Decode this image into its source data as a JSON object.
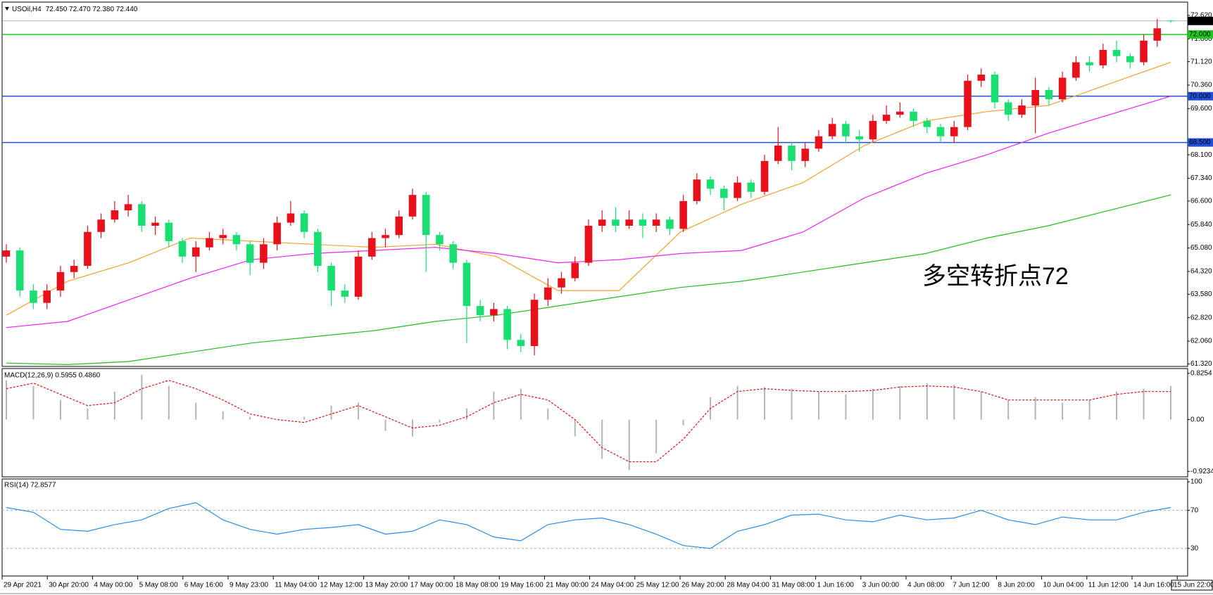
{
  "chart_data": [
    {
      "type": "candlestick",
      "title": "USOil,H4",
      "subtitle": "72.450 72.470 72.380 72.440",
      "open": [
        64.8,
        65.0,
        63.7,
        63.3,
        63.7,
        64.3,
        64.5,
        65.6,
        66.0,
        66.3,
        66.5,
        65.8,
        65.9,
        65.3,
        64.8,
        65.1,
        65.4,
        65.5,
        65.2,
        64.6,
        65.2,
        65.9,
        66.2,
        65.6,
        64.5,
        63.7,
        63.5,
        64.8,
        65.4,
        65.5,
        66.1,
        66.8,
        65.5,
        65.2,
        64.6,
        63.2,
        62.9,
        63.1,
        62.1,
        61.9,
        63.4,
        63.8,
        64.1,
        64.6,
        65.8,
        66.0,
        65.8,
        66.0,
        65.8,
        66.0,
        65.7,
        66.6,
        67.3,
        67.0,
        66.7,
        67.2,
        66.9,
        67.9,
        68.4,
        67.9,
        68.3,
        68.7,
        69.1,
        68.7,
        68.6,
        69.2,
        69.4,
        69.5,
        69.2,
        69.0,
        68.7,
        69.0,
        70.5,
        70.7,
        69.8,
        69.4,
        69.7,
        70.2,
        69.9,
        70.6,
        71.1,
        71.0,
        71.5,
        71.3,
        71.1,
        71.8,
        72.45
      ],
      "high": [
        65.2,
        65.1,
        63.9,
        63.9,
        64.5,
        64.7,
        65.8,
        66.2,
        66.6,
        66.8,
        66.6,
        66.1,
        66.0,
        65.4,
        65.3,
        65.6,
        65.7,
        65.6,
        65.3,
        65.4,
        66.1,
        66.6,
        66.3,
        65.7,
        64.6,
        63.9,
        65.0,
        65.6,
        65.7,
        66.3,
        67.0,
        66.9,
        65.6,
        65.3,
        64.7,
        63.4,
        63.3,
        63.2,
        62.3,
        63.6,
        64.1,
        64.3,
        64.8,
        66.0,
        66.3,
        66.4,
        66.3,
        66.2,
        66.2,
        66.1,
        66.8,
        67.5,
        67.4,
        67.1,
        67.4,
        67.3,
        68.1,
        69.0,
        68.5,
        68.5,
        68.9,
        69.3,
        69.2,
        68.9,
        69.4,
        69.7,
        69.8,
        69.6,
        69.3,
        69.1,
        69.2,
        70.7,
        70.9,
        70.8,
        69.9,
        69.9,
        70.6,
        70.3,
        70.8,
        71.3,
        71.3,
        71.7,
        71.8,
        71.4,
        72.0,
        72.5,
        72.47
      ],
      "low": [
        64.6,
        63.5,
        63.1,
        63.1,
        63.5,
        64.1,
        64.4,
        65.4,
        65.9,
        66.1,
        65.6,
        65.5,
        65.1,
        64.6,
        64.3,
        65.0,
        65.2,
        65.0,
        64.2,
        64.4,
        65.0,
        65.8,
        65.4,
        64.3,
        63.2,
        63.3,
        63.4,
        64.7,
        65.1,
        65.4,
        66.0,
        64.3,
        65.0,
        64.4,
        62.0,
        62.7,
        62.7,
        61.8,
        61.7,
        61.6,
        63.2,
        63.6,
        64.0,
        64.5,
        65.6,
        65.6,
        65.7,
        65.4,
        65.6,
        65.5,
        65.6,
        66.5,
        66.8,
        66.3,
        66.6,
        66.7,
        66.8,
        67.8,
        67.6,
        67.7,
        68.2,
        68.6,
        68.5,
        68.2,
        68.5,
        69.1,
        69.3,
        69.0,
        68.8,
        68.5,
        68.5,
        68.9,
        70.3,
        69.6,
        69.2,
        69.3,
        68.8,
        69.7,
        69.8,
        70.5,
        70.8,
        70.9,
        71.1,
        70.9,
        71.0,
        71.6,
        72.38
      ],
      "close": [
        65.0,
        63.7,
        63.3,
        63.7,
        64.3,
        64.5,
        65.6,
        66.0,
        66.3,
        66.5,
        65.8,
        65.9,
        65.3,
        64.8,
        65.1,
        65.4,
        65.5,
        65.2,
        64.6,
        65.2,
        65.9,
        66.2,
        65.6,
        64.5,
        63.7,
        63.5,
        64.8,
        65.4,
        65.5,
        66.1,
        66.8,
        65.5,
        65.2,
        64.6,
        63.2,
        62.9,
        63.1,
        62.1,
        61.9,
        63.4,
        63.8,
        64.1,
        64.6,
        65.8,
        66.0,
        65.8,
        66.0,
        65.8,
        66.0,
        65.7,
        66.6,
        67.3,
        67.0,
        66.7,
        67.2,
        66.9,
        67.9,
        68.4,
        67.9,
        68.3,
        68.7,
        69.1,
        68.7,
        68.6,
        69.2,
        69.4,
        69.5,
        69.2,
        69.0,
        68.7,
        69.0,
        70.5,
        70.7,
        69.8,
        69.4,
        69.7,
        70.2,
        69.9,
        70.6,
        71.1,
        71.0,
        71.5,
        71.3,
        71.1,
        71.8,
        72.2,
        72.44
      ],
      "up_color": "#e8111b",
      "down_color": "#19df72",
      "series": [
        {
          "color": "#f5a030",
          "values": [
            62.9,
            64.0,
            64.6,
            65.4,
            65.3,
            65.2,
            65.1,
            65.2,
            64.8,
            63.7,
            63.7,
            65.6,
            66.5,
            67.2,
            68.4,
            69.2,
            69.5,
            69.7,
            70.4,
            71.1
          ]
        },
        {
          "color": "#ee22ee",
          "values": [
            62.5,
            62.7,
            63.4,
            64.1,
            64.7,
            64.9,
            65.0,
            65.1,
            64.9,
            64.6,
            64.7,
            64.9,
            65.0,
            65.6,
            66.7,
            67.5,
            68.1,
            68.8,
            69.4,
            70.0
          ]
        },
        {
          "color": "#22bb22",
          "values": [
            61.35,
            61.3,
            61.4,
            61.7,
            62.0,
            62.2,
            62.4,
            62.7,
            62.9,
            63.2,
            63.5,
            63.8,
            64.0,
            64.3,
            64.6,
            64.9,
            65.4,
            65.8,
            66.3,
            66.8
          ]
        }
      ],
      "ylim": [
        61.24,
        73.05
      ],
      "yticks": [
        {
          "value": 72.62,
          "label": "72.620"
        },
        {
          "value": 71.86,
          "label": "71.860"
        },
        {
          "value": 71.12,
          "label": "71.120"
        },
        {
          "value": 70.36,
          "label": "70.360"
        },
        {
          "value": 69.6,
          "label": "69.600"
        },
        {
          "value": 68.1,
          "label": "68.100"
        },
        {
          "value": 67.34,
          "label": "67.340"
        },
        {
          "value": 66.6,
          "label": "66.600"
        },
        {
          "value": 65.84,
          "label": "65.840"
        },
        {
          "value": 65.08,
          "label": "65.080"
        },
        {
          "value": 64.32,
          "label": "64.320"
        },
        {
          "value": 63.58,
          "label": "63.580"
        },
        {
          "value": 62.82,
          "label": "62.820"
        },
        {
          "value": 62.06,
          "label": "62.060"
        },
        {
          "value": 61.32,
          "label": "61.320"
        }
      ],
      "levels": [
        {
          "value": 72,
          "label": "72.000",
          "color": "#1ec81e"
        },
        {
          "value": 70,
          "label": "70.000",
          "color": "#2050d8"
        },
        {
          "value": 68.5,
          "label": "68.500",
          "color": "#2050d8"
        }
      ],
      "last_price": {
        "value": 72.44,
        "label": "72.440"
      },
      "annotation": "多空转折点72"
    },
    {
      "type": "macd",
      "title": "MACD(12,26,9) 0.5955 0.4860",
      "histogram": [
        0.7,
        0.6,
        0.35,
        0.2,
        0.5,
        0.8,
        0.6,
        0.3,
        0.15,
        0.05,
        0.0,
        0.05,
        0.25,
        0.3,
        -0.2,
        -0.3,
        -0.05,
        0.2,
        0.5,
        0.55,
        0.2,
        -0.3,
        -0.7,
        -0.9,
        -0.6,
        -0.1,
        0.4,
        0.6,
        0.58,
        0.55,
        0.5,
        0.45,
        0.55,
        0.6,
        0.65,
        0.62,
        0.5,
        0.35,
        0.4,
        0.3,
        0.35,
        0.5,
        0.55,
        0.6
      ],
      "signal": [
        0.55,
        0.65,
        0.45,
        0.25,
        0.3,
        0.55,
        0.7,
        0.55,
        0.35,
        0.1,
        0.0,
        -0.05,
        0.1,
        0.25,
        0.05,
        -0.15,
        -0.1,
        0.05,
        0.3,
        0.45,
        0.35,
        0.0,
        -0.5,
        -0.75,
        -0.75,
        -0.35,
        0.2,
        0.5,
        0.55,
        0.52,
        0.5,
        0.5,
        0.52,
        0.58,
        0.6,
        0.58,
        0.5,
        0.35,
        0.35,
        0.35,
        0.35,
        0.45,
        0.5,
        0.5
      ],
      "histogram_color": "#b4b4b4",
      "signal_color": "#e01010",
      "ylim": [
        -1.02,
        0.91
      ],
      "yticks": [
        0.8254,
        {
          "value": 0,
          "label": "0.00"
        },
        -0.9234
      ]
    },
    {
      "type": "line",
      "title": "RSI(14) 72.8577",
      "values": [
        73,
        68,
        50,
        48,
        55,
        60,
        72,
        78,
        60,
        50,
        45,
        50,
        52,
        55,
        45,
        48,
        60,
        55,
        42,
        38,
        55,
        60,
        62,
        55,
        45,
        33,
        30,
        48,
        55,
        65,
        66,
        60,
        58,
        65,
        60,
        62,
        70,
        60,
        55,
        63,
        60,
        60,
        68,
        73
      ],
      "color": "#2a8ae8",
      "ylim": [
        1,
        103
      ],
      "yticks": [
        100,
        70,
        30
      ]
    }
  ],
  "time_axis": [
    "29 Apr 2021",
    "30 Apr 20:00",
    "4 May 00:00",
    "5 May 08:00",
    "6 May 16:00",
    "9 May 23:00",
    "11 May 04:00",
    "12 May 12:00",
    "13 May 20:00",
    "17 May 00:00",
    "18 May 08:00",
    "19 May 16:00",
    "21 May 00:00",
    "24 May 04:00",
    "25 May 12:00",
    "26 May 20:00",
    "28 May 04:00",
    "31 May 08:00",
    "1 Jun 16:00",
    "3 Jun 00:00",
    "4 Jun 08:00",
    "7 Jun 12:00",
    "8 Jun 20:00",
    "10 Jun 04:00",
    "11 Jun 12:00",
    "14 Jun 16:00",
    "15 Jun 22:00"
  ]
}
